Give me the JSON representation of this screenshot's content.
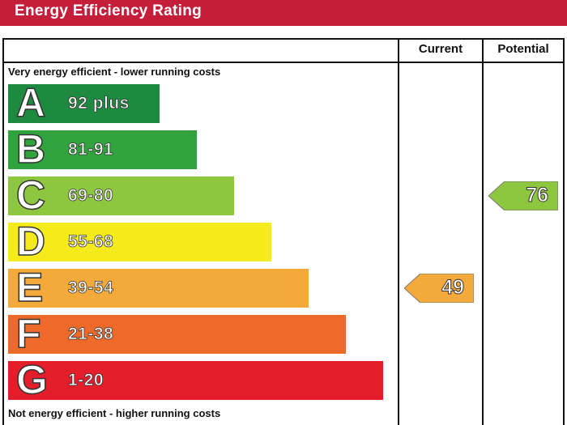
{
  "title": "Energy Efficiency Rating",
  "headers": {
    "current": "Current",
    "potential": "Potential"
  },
  "top_note": "Very energy efficient - lower running costs",
  "bottom_note": "Not energy efficient - higher running costs",
  "chart_data": {
    "type": "bar",
    "title": "Energy Efficiency Rating",
    "categories": [
      "A",
      "B",
      "C",
      "D",
      "E",
      "F",
      "G"
    ],
    "bands": [
      {
        "letter": "A",
        "range": "92 plus",
        "color": "#1e8a3f"
      },
      {
        "letter": "B",
        "range": "81-91",
        "color": "#30a23e"
      },
      {
        "letter": "C",
        "range": "69-80",
        "color": "#8dc63f"
      },
      {
        "letter": "D",
        "range": "55-68",
        "color": "#f5ea1c"
      },
      {
        "letter": "E",
        "range": "39-54",
        "color": "#f4a93b"
      },
      {
        "letter": "F",
        "range": "21-38",
        "color": "#ee6a2b"
      },
      {
        "letter": "G",
        "range": "1-20",
        "color": "#e31d2a"
      }
    ],
    "current": {
      "value": 49,
      "band": "E",
      "color": "#f4a93b"
    },
    "potential": {
      "value": 76,
      "band": "C",
      "color": "#8dc63f"
    }
  }
}
